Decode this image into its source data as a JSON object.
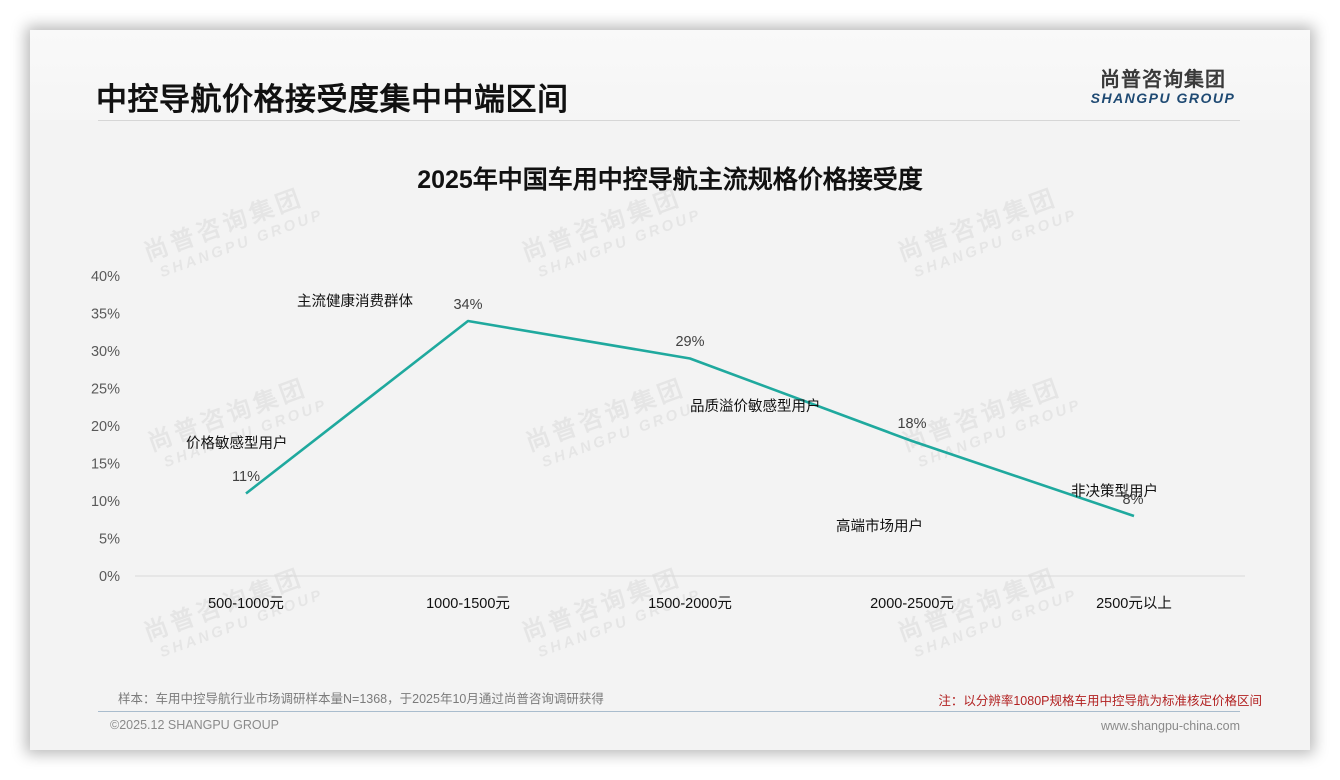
{
  "header": {
    "page_title": "中控导航价格接受度集中中端区间",
    "logo_cn": "尚普咨询集团",
    "logo_en": "SHANGPU GROUP"
  },
  "watermark": {
    "cn": "尚普咨询集团",
    "en": "SHANGPU GROUP"
  },
  "chart_data": {
    "type": "line",
    "title": "2025年中国车用中控导航主流规格价格接受度",
    "categories": [
      "500-1000元",
      "1000-1500元",
      "1500-2000元",
      "2000-2500元",
      "2500元以上"
    ],
    "values": [
      11,
      34,
      29,
      18,
      8
    ],
    "value_labels": [
      "11%",
      "34%",
      "29%",
      "18%",
      "8%"
    ],
    "series": [
      {
        "name": "价格接受度",
        "values": [
          11,
          34,
          29,
          18,
          8
        ],
        "color": "#1fa99e"
      }
    ],
    "annotations": [
      "价格敏感型用户",
      "主流健康消费群体",
      "品质溢价敏感型用户",
      "高端市场用户",
      "非决策型用户"
    ],
    "xlabel": "",
    "ylabel": "",
    "ylim": [
      0,
      40
    ],
    "yticks": [
      "0%",
      "5%",
      "10%",
      "15%",
      "20%",
      "25%",
      "30%",
      "35%",
      "40%"
    ],
    "grid": false,
    "legend": "none"
  },
  "footer": {
    "sample": "样本：车用中控导航行业市场调研样本量N=1368，于2025年10月通过尚普咨询调研获得",
    "note": "注：以分辨率1080P规格车用中控导航为标准核定价格区间",
    "copyright": "©2025.12 SHANGPU GROUP",
    "url": "www.shangpu-china.com"
  },
  "colors": {
    "line": "#1fa99e",
    "note": "#b22222",
    "logo_en": "#1f4a73"
  }
}
